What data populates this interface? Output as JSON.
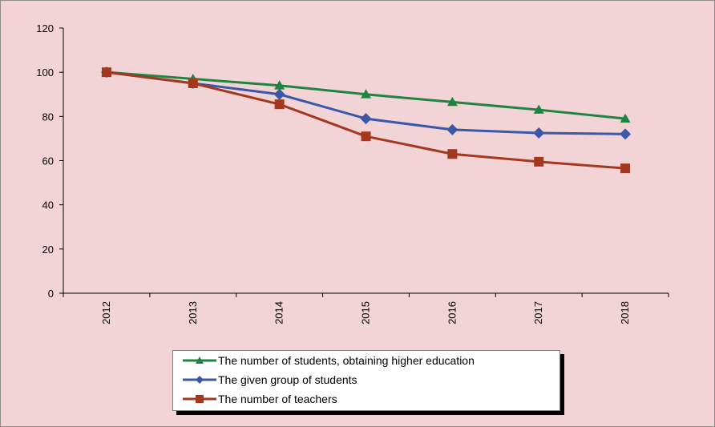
{
  "chart_data": {
    "type": "line",
    "title": "",
    "xlabel": "",
    "ylabel": "",
    "x": [
      "2012",
      "2013",
      "2014",
      "2015",
      "2016",
      "2017",
      "2018"
    ],
    "ylim": [
      0,
      120
    ],
    "yticks": [
      0,
      20,
      40,
      60,
      80,
      100,
      120
    ],
    "grid": false,
    "legend_position": "bottom-center",
    "series": [
      {
        "name": "The number of students, obtaining higher education",
        "color": "#1e8440",
        "marker": "triangle",
        "values": [
          100,
          97,
          94,
          90,
          86.5,
          83,
          79
        ]
      },
      {
        "name": "The given group of students",
        "color": "#3a57a8",
        "marker": "diamond",
        "values": [
          100,
          95,
          90,
          79,
          74,
          72.5,
          72
        ]
      },
      {
        "name": "The number of teachers",
        "color": "#a3381e",
        "marker": "square",
        "values": [
          100,
          95,
          85.5,
          71,
          63,
          59.5,
          56.5
        ]
      }
    ]
  },
  "colors": {
    "background": "#f2d4d6",
    "axis": "#000000"
  }
}
